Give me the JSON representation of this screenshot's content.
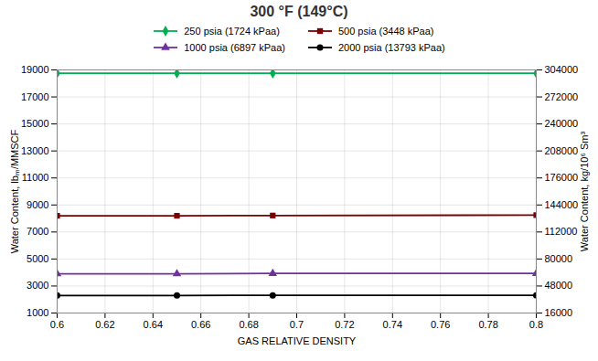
{
  "chart_data": {
    "type": "line",
    "title": "300 °F (149°C)",
    "xlabel": "GAS RELATIVE DENSITY",
    "ylabel": "Water Content, lbₘ/MMSCF",
    "y2label": "Water Content, kg/10⁶ Sm³",
    "xlim": [
      0.6,
      0.8
    ],
    "ylim": [
      1000,
      19000
    ],
    "y2lim": [
      16000,
      304000
    ],
    "xticks": [
      0.6,
      0.62,
      0.64,
      0.66,
      0.68,
      0.7,
      0.72,
      0.74,
      0.76,
      0.78,
      0.8
    ],
    "yticks": [
      1000,
      3000,
      5000,
      7000,
      9000,
      11000,
      13000,
      15000,
      17000,
      19000
    ],
    "y2ticks": [
      16000,
      48000,
      80000,
      112000,
      144000,
      176000,
      208000,
      240000,
      272000,
      304000
    ],
    "grid": true,
    "x": [
      0.6,
      0.65,
      0.69,
      0.8
    ],
    "series": [
      {
        "name": "250 psia (1724 kPaa)",
        "color": "#00B050",
        "marker": "diamond",
        "values": [
          18750,
          18750,
          18750,
          18750
        ]
      },
      {
        "name": "500 psia (3448 kPaa)",
        "color": "#7B0000",
        "marker": "square",
        "values": [
          8200,
          8200,
          8220,
          8250
        ]
      },
      {
        "name": "1000 psia (6897 kPaa)",
        "color": "#7030A0",
        "marker": "triangle",
        "values": [
          3900,
          3900,
          3930,
          3930
        ]
      },
      {
        "name": "2000 psia (13793 kPaa)",
        "color": "#000000",
        "marker": "circle",
        "values": [
          2300,
          2300,
          2310,
          2310
        ]
      }
    ]
  }
}
